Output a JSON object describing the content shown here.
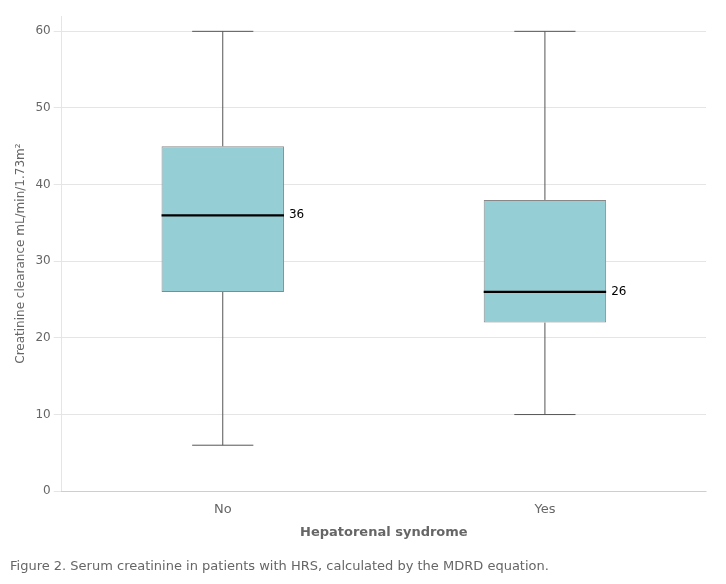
{
  "chart_data": {
    "type": "box",
    "categories": [
      "No",
      "Yes"
    ],
    "q1": [
      26,
      22
    ],
    "median": [
      36,
      26
    ],
    "q3": [
      45,
      38
    ],
    "whisker_low": [
      6,
      10
    ],
    "whisker_high": [
      60,
      60
    ],
    "color": "#96CED5",
    "ylim": [
      0,
      62
    ],
    "yticks": [
      0,
      10,
      20,
      30,
      40,
      50,
      60
    ],
    "ylabel": "Creatinine clearance mL/min/1.73m²",
    "xlabel": "Hepatorenal syndrome",
    "caption": "Figure 2. Serum creatinine in patients with HRS, calculated by the MDRD equation.",
    "grid": true,
    "data_labels": true
  }
}
